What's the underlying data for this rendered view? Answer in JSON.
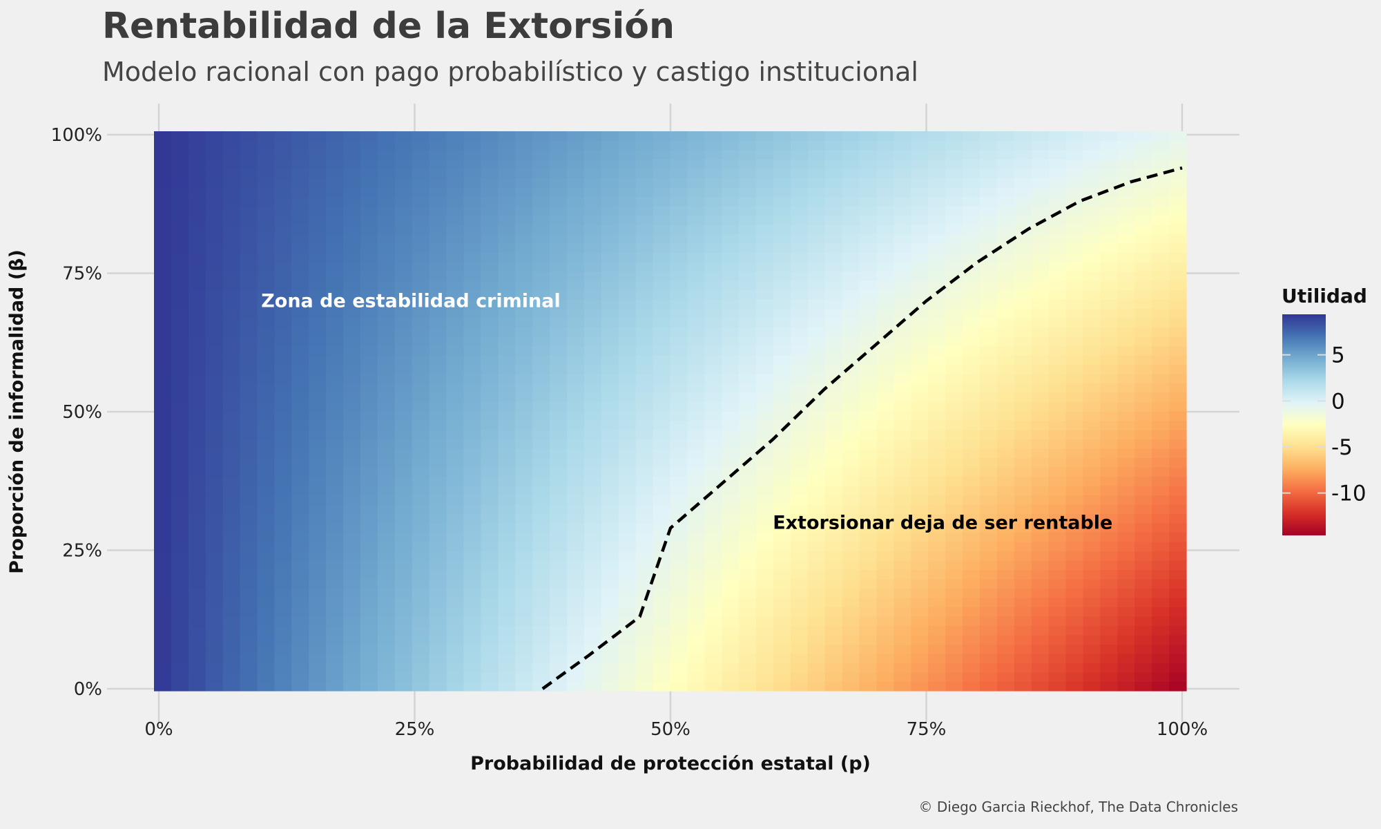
{
  "title": "Rentabilidad de la Extorsión",
  "subtitle": "Modelo racional con pago probabilístico y castigo institucional",
  "caption": "© Diego Garcia Rieckhof, The Data Chronicles",
  "chart_data": {
    "type": "heatmap",
    "xlabel": "Probabilidad de protección estatal (p)",
    "ylabel": "Proporción de informalidad (β)",
    "xlim": [
      0,
      1
    ],
    "ylim": [
      0,
      1
    ],
    "x_ticks": [
      {
        "value": 0,
        "label": "0%"
      },
      {
        "value": 0.25,
        "label": "25%"
      },
      {
        "value": 0.5,
        "label": "50%"
      },
      {
        "value": 0.75,
        "label": "75%"
      },
      {
        "value": 1,
        "label": "100%"
      }
    ],
    "y_ticks": [
      {
        "value": 0,
        "label": "0%"
      },
      {
        "value": 0.25,
        "label": "25%"
      },
      {
        "value": 0.5,
        "label": "50%"
      },
      {
        "value": 0.75,
        "label": "75%"
      },
      {
        "value": 1,
        "label": "100%"
      }
    ],
    "grid": true,
    "grid_resolution": 60,
    "corner_values": {
      "p0_b0": 9.4,
      "p1_b0": -14.6,
      "p0_b1": 9.4,
      "p1_b1": -0.6
    },
    "zero_contour": [
      {
        "p": 0.375,
        "b": 0.0
      },
      {
        "p": 0.42,
        "b": 0.06
      },
      {
        "p": 0.47,
        "b": 0.13
      },
      {
        "p": 0.5,
        "b": 0.29
      },
      {
        "p": 0.55,
        "b": 0.37
      },
      {
        "p": 0.6,
        "b": 0.45
      },
      {
        "p": 0.65,
        "b": 0.54
      },
      {
        "p": 0.7,
        "b": 0.62
      },
      {
        "p": 0.75,
        "b": 0.7
      },
      {
        "p": 0.8,
        "b": 0.77
      },
      {
        "p": 0.85,
        "b": 0.83
      },
      {
        "p": 0.9,
        "b": 0.88
      },
      {
        "p": 0.95,
        "b": 0.915
      },
      {
        "p": 1.0,
        "b": 0.94
      }
    ],
    "annotations": [
      {
        "text": "Zona de estabilidad criminal",
        "p": 0.1,
        "b": 0.7,
        "color": "#ffffff"
      },
      {
        "text": "Extorsionar deja de ser rentable",
        "p": 0.6,
        "b": 0.3,
        "color": "#000000"
      }
    ],
    "legend": {
      "title": "Utilidad",
      "placement": "right",
      "range": [
        -14.6,
        9.4
      ],
      "ticks": [
        5,
        0,
        -5,
        -10
      ],
      "tick_labels": [
        "5",
        "0",
        "-5",
        "-10"
      ],
      "palette": "RdYlBu",
      "colors": [
        "#a50026",
        "#d73027",
        "#f46d43",
        "#fdae61",
        "#fee090",
        "#ffffbf",
        "#e0f3f8",
        "#abd9e9",
        "#74add1",
        "#4575b4",
        "#313695"
      ]
    }
  }
}
